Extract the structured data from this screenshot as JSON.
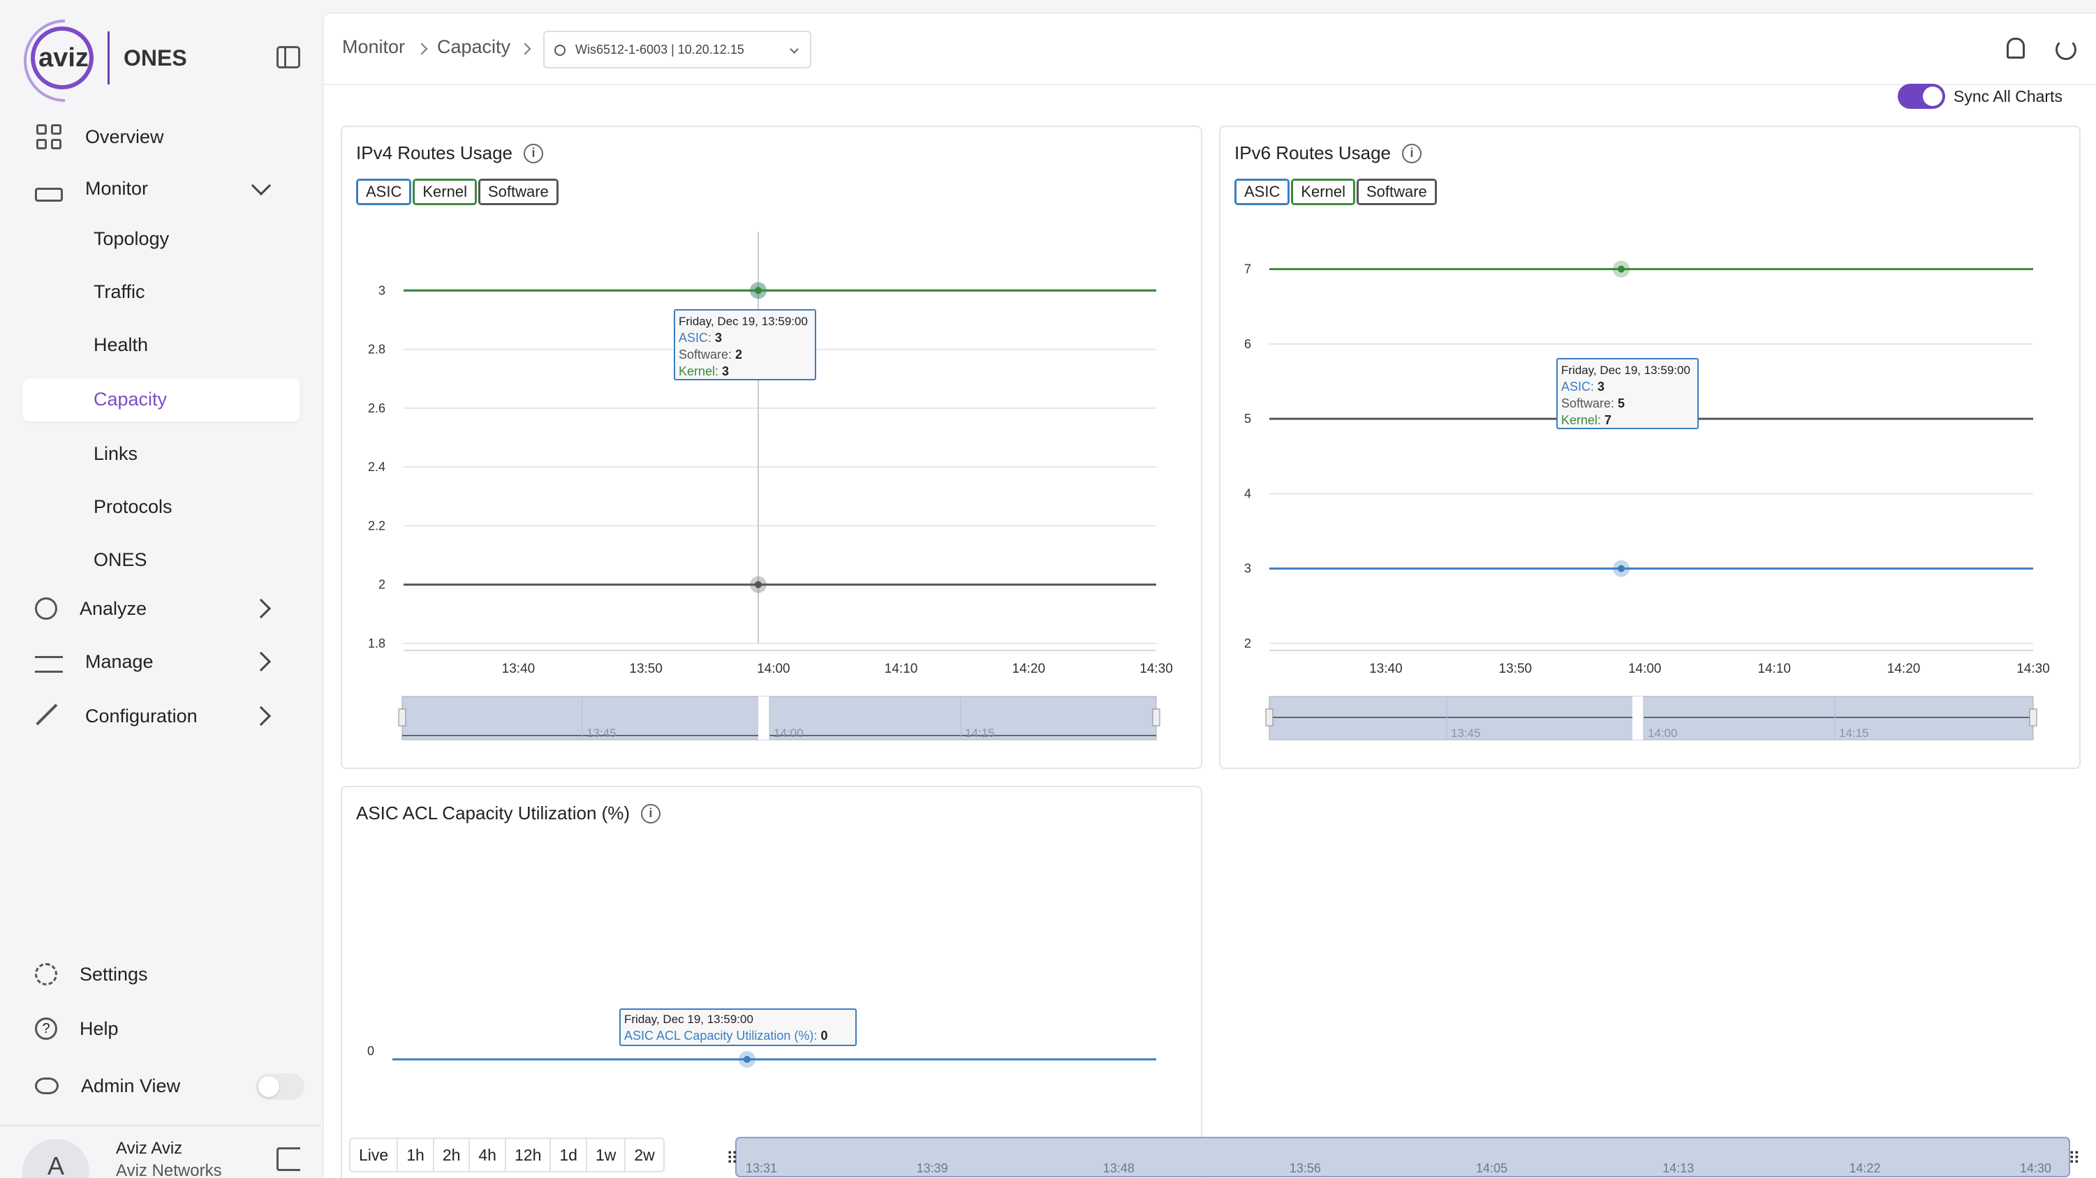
{
  "brand": {
    "logo_text": "aviz",
    "product": "ONES"
  },
  "sidebar": {
    "items": [
      {
        "label": "Overview",
        "icon": "grid-icon"
      },
      {
        "label": "Monitor",
        "icon": "router-icon"
      },
      {
        "label": "Analyze",
        "icon": "search-icon"
      },
      {
        "label": "Manage",
        "icon": "sliders-icon"
      },
      {
        "label": "Configuration",
        "icon": "wrench-icon"
      }
    ],
    "monitor_sub": [
      "Topology",
      "Traffic",
      "Health",
      "Capacity",
      "Links",
      "Protocols",
      "ONES"
    ],
    "active_sub": "Capacity",
    "bottom": [
      {
        "label": "Settings",
        "icon": "gear-icon"
      },
      {
        "label": "Help",
        "icon": "help-icon"
      },
      {
        "label": "Admin View",
        "icon": "eye-icon"
      }
    ],
    "user": {
      "initials": "A",
      "name": "Aviz Aviz",
      "org": "Aviz Networks"
    }
  },
  "header": {
    "breadcrumb": [
      "Monitor",
      "Capacity"
    ],
    "device": "Wis6512-1-6003 | 10.20.12.15"
  },
  "sync_label": "Sync All Charts",
  "charts": {
    "ipv4": {
      "title": "IPv4 Routes Usage",
      "legend": [
        "ASIC",
        "Kernel",
        "Software"
      ],
      "tooltip": {
        "time": "Friday, Dec 19, 13:59:00",
        "asic": "3",
        "software": "2",
        "kernel": "3"
      }
    },
    "ipv6": {
      "title": "IPv6 Routes Usage",
      "legend": [
        "ASIC",
        "Kernel",
        "Software"
      ],
      "tooltip": {
        "time": "Friday, Dec 19, 13:59:00",
        "asic": "3",
        "software": "5",
        "kernel": "7"
      }
    },
    "acl": {
      "title": "ASIC ACL Capacity Utilization (%)",
      "tooltip": {
        "time": "Friday, Dec 19, 13:59:00",
        "series": "ASIC ACL Capacity Utilization (%)",
        "value": "0"
      }
    }
  },
  "chart_data": [
    {
      "type": "line",
      "title": "IPv4 Routes Usage",
      "x": [
        "13:40",
        "13:50",
        "14:00",
        "14:10",
        "14:20",
        "14:30"
      ],
      "y_ticks": [
        "1.8",
        "2",
        "2.2",
        "2.4",
        "2.6",
        "2.8",
        "3"
      ],
      "ylim": [
        1.8,
        3.2
      ],
      "series": [
        {
          "name": "ASIC",
          "values": [
            3,
            3,
            3,
            3,
            3,
            3
          ],
          "color": "#3a7dc2"
        },
        {
          "name": "Kernel",
          "values": [
            3,
            3,
            3,
            3,
            3,
            3
          ],
          "color": "#3b8a3b"
        },
        {
          "name": "Software",
          "values": [
            2,
            2,
            2,
            2,
            2,
            2
          ],
          "color": "#555555"
        }
      ],
      "navigator_ticks": [
        "13:45",
        "14:00",
        "14:15"
      ]
    },
    {
      "type": "line",
      "title": "IPv6 Routes Usage",
      "x": [
        "13:40",
        "13:50",
        "14:00",
        "14:10",
        "14:20",
        "14:30"
      ],
      "y_ticks": [
        "2",
        "3",
        "4",
        "5",
        "6",
        "7"
      ],
      "ylim": [
        2,
        7.5
      ],
      "series": [
        {
          "name": "ASIC",
          "values": [
            3,
            3,
            3,
            3,
            3,
            3
          ],
          "color": "#3a7dc2"
        },
        {
          "name": "Kernel",
          "values": [
            7,
            7,
            7,
            7,
            7,
            7
          ],
          "color": "#3b8a3b"
        },
        {
          "name": "Software",
          "values": [
            5,
            5,
            5,
            5,
            5,
            5
          ],
          "color": "#555555"
        }
      ],
      "navigator_ticks": [
        "13:45",
        "14:00",
        "14:15"
      ]
    },
    {
      "type": "line",
      "title": "ASIC ACL Capacity Utilization (%)",
      "y_ticks": [
        "0"
      ],
      "series": [
        {
          "name": "ASIC ACL Capacity Utilization (%)",
          "values": [
            0,
            0,
            0,
            0,
            0,
            0
          ],
          "color": "#3a7dc2"
        }
      ]
    }
  ],
  "timebar": {
    "ranges": [
      "Live",
      "1h",
      "2h",
      "4h",
      "12h",
      "1d",
      "1w",
      "2w"
    ],
    "ticks": [
      "13:31",
      "13:39",
      "13:48",
      "13:56",
      "14:05",
      "14:13",
      "14:22",
      "14:30"
    ]
  },
  "colors": {
    "accent": "#6f44c0",
    "asic": "#3a7dc2",
    "kernel": "#3b8a3b",
    "software": "#555555"
  }
}
